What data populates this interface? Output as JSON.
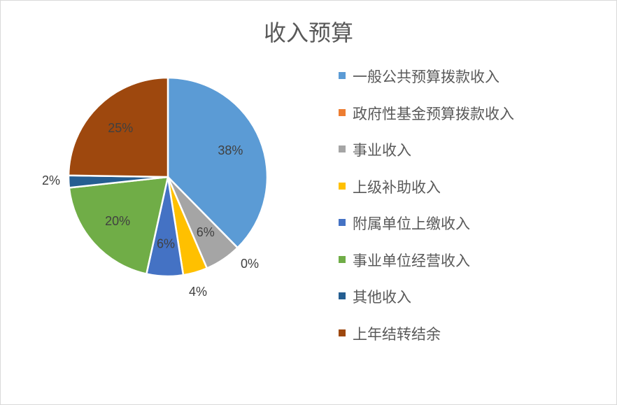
{
  "chart_data": {
    "type": "pie",
    "title": "收入预算",
    "legend_position": "right",
    "slices": [
      {
        "name": "一般公共预算拨款收入",
        "value": 38,
        "label": "38%",
        "color": "#5b9bd5",
        "label_inside": true
      },
      {
        "name": "政府性基金预算拨款收入",
        "value": 0,
        "label": "0%",
        "color": "#ed7d31",
        "label_inside": false
      },
      {
        "name": "事业收入",
        "value": 6,
        "label": "6%",
        "color": "#a5a5a5",
        "label_inside": true
      },
      {
        "name": "上级补助收入",
        "value": 4,
        "label": "4%",
        "color": "#ffc000",
        "label_inside": false
      },
      {
        "name": "附属单位上缴收入",
        "value": 6,
        "label": "6%",
        "color": "#4472c4",
        "label_inside": true
      },
      {
        "name": "事业单位经营收入",
        "value": 20,
        "label": "20%",
        "color": "#70ad47",
        "label_inside": true
      },
      {
        "name": "其他收入",
        "value": 2,
        "label": "2%",
        "color": "#255e91",
        "label_inside": false
      },
      {
        "name": "上年结转结余",
        "value": 25,
        "label": "25%",
        "color": "#9e480e",
        "label_inside": true
      }
    ]
  }
}
